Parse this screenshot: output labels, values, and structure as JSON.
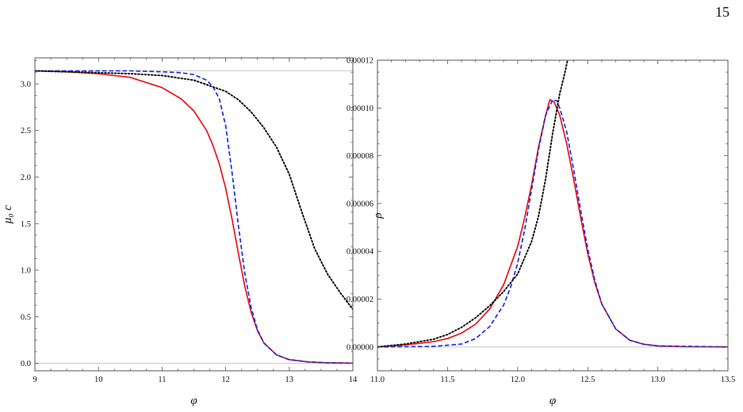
{
  "page": {
    "number": "15"
  },
  "colors": {
    "red": "#e8141a",
    "blue": "#1a2fe0",
    "black": "#111111",
    "reference_line": "#c8c8c8",
    "frame": "#555555"
  },
  "chart_data": [
    {
      "type": "line",
      "xlabel": "φ",
      "ylabel": "μ₀ c",
      "xlim": [
        9,
        14
      ],
      "ylim": [
        -0.08,
        3.28
      ],
      "xticks": [
        "9",
        "10",
        "11",
        "12",
        "13",
        "14"
      ],
      "yticks": [
        "0.0",
        "0.5",
        "1.0",
        "1.5",
        "2.0",
        "2.5",
        "3.0"
      ],
      "reference_lines_y": [
        0,
        3.1416
      ],
      "grid": false,
      "series": [
        {
          "color": "red",
          "style": "solid",
          "x": [
            9.0,
            9.5,
            10.0,
            10.5,
            11.0,
            11.3,
            11.5,
            11.7,
            11.8,
            11.9,
            12.0,
            12.1,
            12.2,
            12.3,
            12.4,
            12.5,
            12.6,
            12.8,
            13.0,
            13.3,
            13.6,
            14.0
          ],
          "y": [
            3.14,
            3.13,
            3.11,
            3.07,
            2.96,
            2.84,
            2.71,
            2.5,
            2.34,
            2.14,
            1.88,
            1.55,
            1.18,
            0.83,
            0.55,
            0.35,
            0.22,
            0.09,
            0.04,
            0.015,
            0.006,
            0.002
          ]
        },
        {
          "color": "blue",
          "style": "dashed",
          "x": [
            9.0,
            9.5,
            10.0,
            10.5,
            11.0,
            11.3,
            11.5,
            11.7,
            11.8,
            11.9,
            12.0,
            12.1,
            12.2,
            12.3,
            12.4,
            12.5,
            12.6,
            12.8,
            13.0,
            13.3,
            13.6,
            14.0
          ],
          "y": [
            3.14,
            3.14,
            3.14,
            3.14,
            3.13,
            3.12,
            3.1,
            3.04,
            2.97,
            2.84,
            2.55,
            2.05,
            1.48,
            0.97,
            0.6,
            0.36,
            0.22,
            0.09,
            0.04,
            0.015,
            0.006,
            0.002
          ]
        },
        {
          "color": "black",
          "style": "dotted",
          "x": [
            9.0,
            9.5,
            10.0,
            10.5,
            11.0,
            11.5,
            12.0,
            12.2,
            12.4,
            12.6,
            12.8,
            13.0,
            13.2,
            13.4,
            13.6,
            13.8,
            14.0
          ],
          "y": [
            3.14,
            3.13,
            3.12,
            3.11,
            3.09,
            3.04,
            2.92,
            2.83,
            2.7,
            2.53,
            2.32,
            2.03,
            1.62,
            1.23,
            0.96,
            0.76,
            0.58
          ]
        }
      ]
    },
    {
      "type": "line",
      "xlabel": "φ",
      "ylabel": "ρ",
      "xlim": [
        11.0,
        13.5
      ],
      "ylim": [
        -1e-05,
        0.00012
      ],
      "xticks": [
        "11.0",
        "11.5",
        "12.0",
        "12.5",
        "13.0",
        "13.5"
      ],
      "yticks": [
        "0.00000",
        "0.00002",
        "0.00004",
        "0.00006",
        "0.00008",
        "0.00010",
        "0.00012"
      ],
      "reference_lines_y": [
        0
      ],
      "grid": false,
      "series": [
        {
          "color": "red",
          "style": "solid",
          "x": [
            11.0,
            11.2,
            11.4,
            11.5,
            11.6,
            11.7,
            11.8,
            11.9,
            12.0,
            12.05,
            12.1,
            12.15,
            12.2,
            12.23,
            12.26,
            12.3,
            12.35,
            12.4,
            12.45,
            12.5,
            12.55,
            12.6,
            12.7,
            12.8,
            12.9,
            13.0,
            13.2,
            13.5
          ],
          "y": [
            0.0,
            8e-07,
            2.2e-06,
            3.5e-06,
            5.8e-06,
            9.5e-06,
            1.58e-05,
            2.6e-05,
            4.2e-05,
            5.4e-05,
            6.8e-05,
            8.4e-05,
            9.7e-05,
            0.0001035,
            0.0001025,
            9.7e-05,
            8.5e-05,
            7e-05,
            5.4e-05,
            3.9e-05,
            2.7e-05,
            1.8e-05,
            7.5e-06,
            2.8e-06,
            1.1e-06,
            4e-07,
            1e-07,
            0.0
          ]
        },
        {
          "color": "blue",
          "style": "dashed",
          "x": [
            11.0,
            11.4,
            11.6,
            11.7,
            11.8,
            11.9,
            11.95,
            12.0,
            12.05,
            12.1,
            12.15,
            12.2,
            12.25,
            12.28,
            12.3,
            12.35,
            12.4,
            12.45,
            12.5,
            12.55,
            12.6,
            12.7,
            12.8,
            12.9,
            13.0,
            13.5
          ],
          "y": [
            0.0,
            2e-07,
            1.2e-06,
            3.5e-06,
            8.5e-06,
            1.75e-05,
            2.5e-05,
            3.5e-05,
            4.9e-05,
            6.6e-05,
            8.3e-05,
            9.7e-05,
            0.0001035,
            0.000103,
            0.0001,
            9e-05,
            7.4e-05,
            5.7e-05,
            4.1e-05,
            2.8e-05,
            1.8e-05,
            7.5e-06,
            2.8e-06,
            1.1e-06,
            4e-07,
            0.0
          ]
        },
        {
          "color": "black",
          "style": "dotted",
          "x": [
            11.0,
            11.2,
            11.4,
            11.5,
            11.6,
            11.7,
            11.8,
            11.9,
            12.0,
            12.1,
            12.15,
            12.2,
            12.25,
            12.3,
            12.33,
            12.36
          ],
          "y": [
            0.0,
            1.2e-06,
            3.2e-06,
            5.2e-06,
            8.2e-06,
            1.22e-05,
            1.72e-05,
            2.32e-05,
            3.05e-05,
            4.42e-05,
            5.5e-05,
            7.05e-05,
            8.95e-05,
            0.000106,
            0.000113,
            0.000121
          ]
        }
      ]
    }
  ]
}
